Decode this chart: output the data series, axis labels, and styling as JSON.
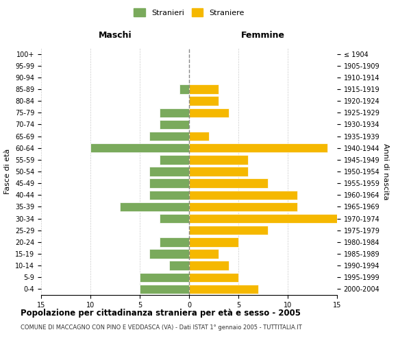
{
  "age_groups": [
    "100+",
    "95-99",
    "90-94",
    "85-89",
    "80-84",
    "75-79",
    "70-74",
    "65-69",
    "60-64",
    "55-59",
    "50-54",
    "45-49",
    "40-44",
    "35-39",
    "30-34",
    "25-29",
    "20-24",
    "15-19",
    "10-14",
    "5-9",
    "0-4"
  ],
  "birth_years": [
    "≤ 1904",
    "1905-1909",
    "1910-1914",
    "1915-1919",
    "1920-1924",
    "1925-1929",
    "1930-1934",
    "1935-1939",
    "1940-1944",
    "1945-1949",
    "1950-1954",
    "1955-1959",
    "1960-1964",
    "1965-1969",
    "1970-1974",
    "1975-1979",
    "1980-1984",
    "1985-1989",
    "1990-1994",
    "1995-1999",
    "2000-2004"
  ],
  "males": [
    0,
    0,
    0,
    1,
    0,
    3,
    3,
    4,
    10,
    3,
    4,
    4,
    4,
    7,
    3,
    0,
    3,
    4,
    2,
    5,
    5
  ],
  "females": [
    0,
    0,
    0,
    3,
    3,
    4,
    0,
    2,
    14,
    6,
    6,
    8,
    11,
    11,
    15,
    8,
    5,
    3,
    4,
    5,
    7
  ],
  "male_color": "#7aaa5c",
  "female_color": "#f5b800",
  "background_color": "#ffffff",
  "grid_color": "#cccccc",
  "dashed_line_color": "#888888",
  "title": "Popolazione per cittadinanza straniera per età e sesso - 2005",
  "subtitle": "COMUNE DI MACCAGNO CON PINO E VEDDASCA (VA) - Dati ISTAT 1° gennaio 2005 - TUTTITALIA.IT",
  "xlabel_left": "Maschi",
  "xlabel_right": "Femmine",
  "ylabel_left": "Fasce di età",
  "ylabel_right": "Anni di nascita",
  "legend_male": "Stranieri",
  "legend_female": "Straniere",
  "xlim": 15
}
